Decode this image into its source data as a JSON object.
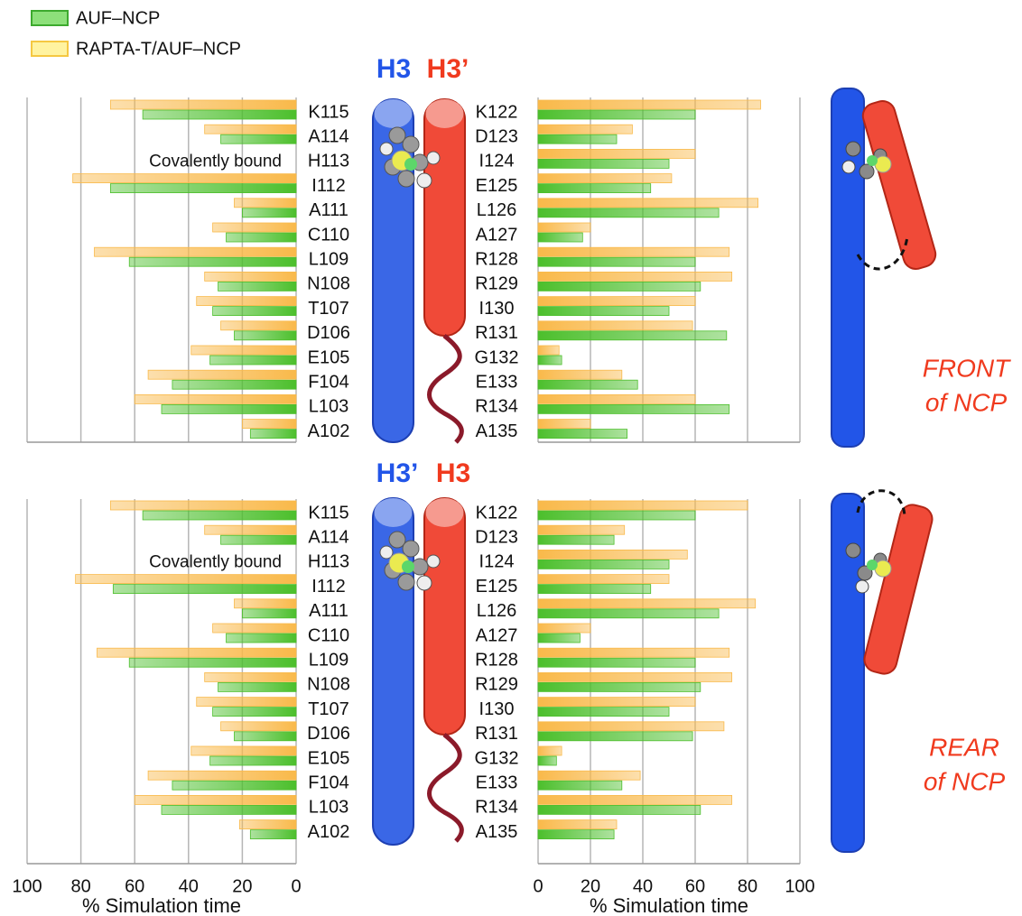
{
  "chart_data": [
    {
      "type": "bar",
      "orientation": "horizontal",
      "categories": [
        "K115",
        "A114",
        "H113",
        "I112",
        "A111",
        "C110",
        "L109",
        "N108",
        "T107",
        "D106",
        "E105",
        "F104",
        "L103",
        "A102"
      ],
      "series": [
        {
          "name": "AUF–NCP",
          "color": "#4cbf2c",
          "values": [
            57,
            28,
            null,
            69,
            20,
            26,
            62,
            29,
            31,
            23,
            32,
            46,
            50,
            17
          ]
        },
        {
          "name": "RAPTA-T/AUF–NCP",
          "color": "#f9b94a",
          "values": [
            69,
            34,
            null,
            83,
            23,
            31,
            75,
            34,
            37,
            28,
            39,
            55,
            60,
            20
          ]
        }
      ],
      "annotation": "Covalently bound",
      "xlim": [
        100,
        0
      ],
      "xticks": [
        100,
        80,
        60,
        40,
        20,
        0
      ],
      "show_tick_labels": false,
      "grid": true
    },
    {
      "type": "bar",
      "orientation": "horizontal",
      "categories": [
        "K122",
        "D123",
        "I124",
        "E125",
        "L126",
        "A127",
        "R128",
        "R129",
        "I130",
        "R131",
        "G132",
        "E133",
        "R134",
        "A135"
      ],
      "series": [
        {
          "name": "AUF–NCP",
          "color": "#4cbf2c",
          "values": [
            60,
            30,
            50,
            43,
            69,
            17,
            60,
            62,
            50,
            72,
            9,
            38,
            73,
            34
          ]
        },
        {
          "name": "RAPTA-T/AUF–NCP",
          "color": "#f9b94a",
          "values": [
            85,
            36,
            60,
            51,
            84,
            20,
            73,
            74,
            60,
            59,
            8,
            32,
            60,
            20
          ]
        }
      ],
      "xlim": [
        0,
        100
      ],
      "xticks": [
        0,
        20,
        40,
        60,
        80,
        100
      ],
      "show_tick_labels": false,
      "grid": true
    },
    {
      "type": "bar",
      "orientation": "horizontal",
      "categories": [
        "K115",
        "A114",
        "H113",
        "I112",
        "A111",
        "C110",
        "L109",
        "N108",
        "T107",
        "D106",
        "E105",
        "F104",
        "L103",
        "A102"
      ],
      "series": [
        {
          "name": "AUF–NCP",
          "color": "#4cbf2c",
          "values": [
            57,
            28,
            null,
            68,
            20,
            26,
            62,
            29,
            31,
            23,
            32,
            46,
            50,
            17
          ]
        },
        {
          "name": "RAPTA-T/AUF–NCP",
          "color": "#f9b94a",
          "values": [
            69,
            34,
            null,
            82,
            23,
            31,
            74,
            34,
            37,
            28,
            39,
            55,
            60,
            21
          ]
        }
      ],
      "annotation": "Covalently bound",
      "xlabel": "% Simulation time",
      "xlim": [
        100,
        0
      ],
      "xticks": [
        100,
        80,
        60,
        40,
        20,
        0
      ],
      "show_tick_labels": true,
      "grid": true
    },
    {
      "type": "bar",
      "orientation": "horizontal",
      "categories": [
        "K122",
        "D123",
        "I124",
        "E125",
        "L126",
        "A127",
        "R128",
        "R129",
        "I130",
        "R131",
        "G132",
        "E133",
        "R134",
        "A135"
      ],
      "series": [
        {
          "name": "AUF–NCP",
          "color": "#4cbf2c",
          "values": [
            60,
            29,
            50,
            43,
            69,
            16,
            60,
            62,
            50,
            59,
            7,
            32,
            62,
            29
          ]
        },
        {
          "name": "RAPTA-T/AUF–NCP",
          "color": "#f9b94a",
          "values": [
            80,
            33,
            57,
            50,
            83,
            20,
            73,
            74,
            60,
            71,
            9,
            39,
            74,
            30
          ]
        }
      ],
      "xlabel": "% Simulation time",
      "xlim": [
        0,
        100
      ],
      "xticks": [
        0,
        20,
        40,
        60,
        80,
        100
      ],
      "show_tick_labels": true,
      "grid": true
    }
  ],
  "helix_labels": {
    "top": [
      "H3",
      "H3’"
    ],
    "bottom": [
      "H3’",
      "H3"
    ]
  },
  "side_labels": {
    "front": [
      "FRONT",
      "of NCP"
    ],
    "rear": [
      "REAR",
      "of NCP"
    ]
  }
}
